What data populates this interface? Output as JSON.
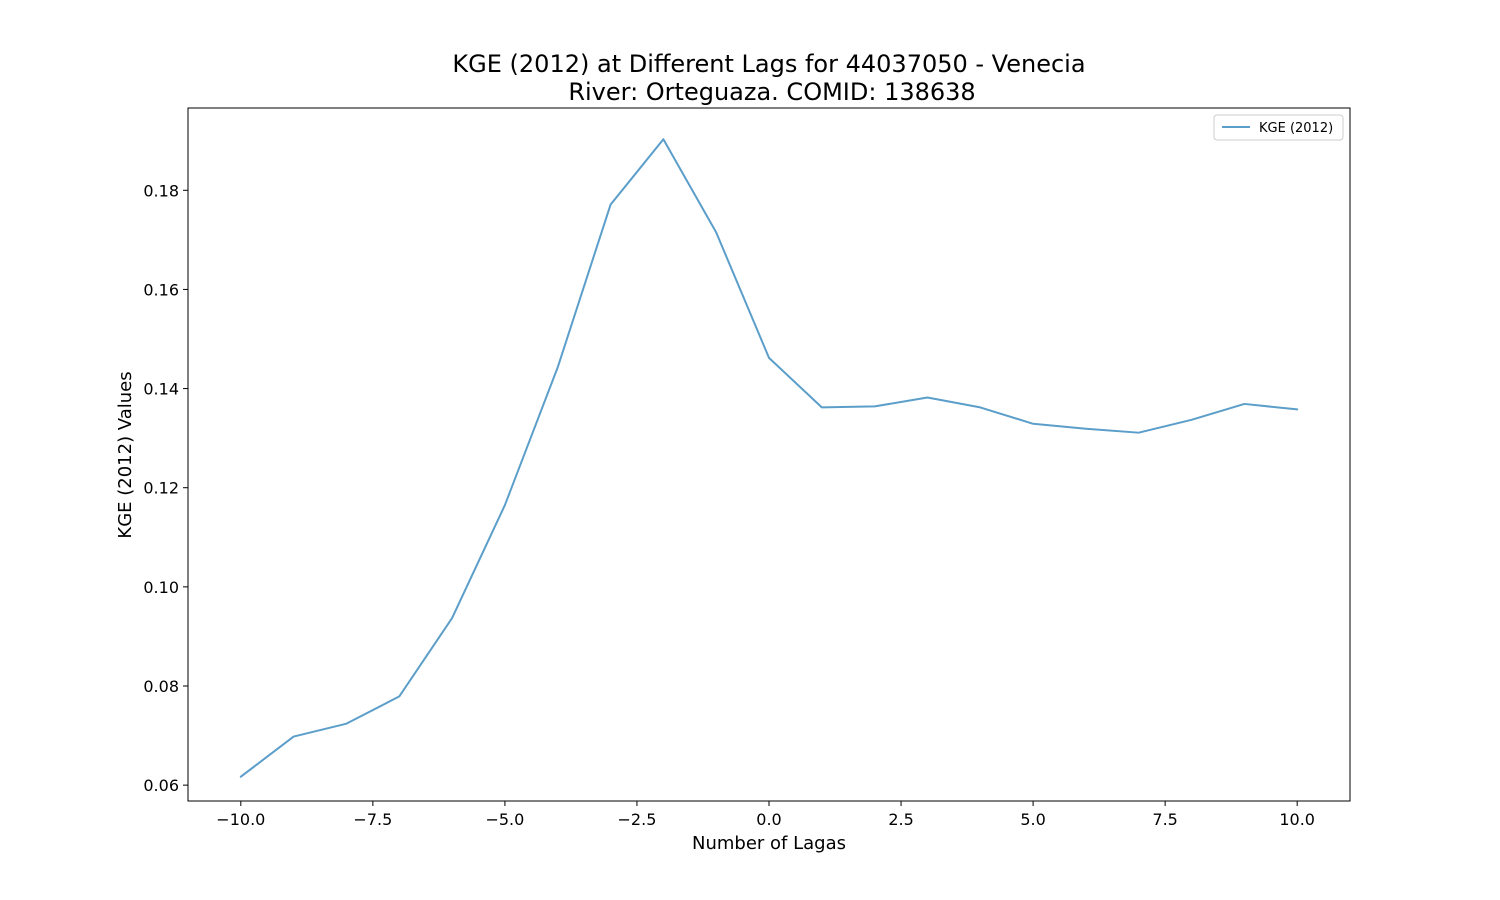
{
  "chart_data": {
    "type": "line",
    "title": "KGE (2012) at Different Lags for 44037050 - Venecia",
    "subtitle": "River: Orteguaza. COMID: 138638",
    "xlabel": "Number of Lagas",
    "ylabel": "KGE (2012) Values",
    "xlim": [
      -11.0,
      11.0
    ],
    "ylim": [
      0.0568,
      0.1966
    ],
    "xticks": [
      -10.0,
      -7.5,
      -5.0,
      -2.5,
      0.0,
      2.5,
      5.0,
      7.5,
      10.0
    ],
    "xtick_labels": [
      "−10.0",
      "−7.5",
      "−5.0",
      "−2.5",
      "0.0",
      "2.5",
      "5.0",
      "7.5",
      "10.0"
    ],
    "yticks": [
      0.06,
      0.08,
      0.1,
      0.12,
      0.14,
      0.16,
      0.18
    ],
    "ytick_labels": [
      "0.06",
      "0.08",
      "0.10",
      "0.12",
      "0.14",
      "0.16",
      "0.18"
    ],
    "grid": false,
    "legend_position": "top-right",
    "series": [
      {
        "name": "KGE (2012)",
        "color": "#5b9ec9",
        "x": [
          -10,
          -9,
          -8,
          -7,
          -6,
          -5,
          -4,
          -3,
          -2,
          -1,
          0,
          1,
          2,
          3,
          4,
          5,
          6,
          7,
          8,
          9,
          10
        ],
        "y": [
          0.0617,
          0.0698,
          0.0724,
          0.0779,
          0.0937,
          0.1165,
          0.1443,
          0.1771,
          0.1903,
          0.1715,
          0.1462,
          0.1362,
          0.1364,
          0.1382,
          0.1362,
          0.1329,
          0.1319,
          0.1311,
          0.1337,
          0.1369,
          0.1358
        ]
      }
    ]
  }
}
